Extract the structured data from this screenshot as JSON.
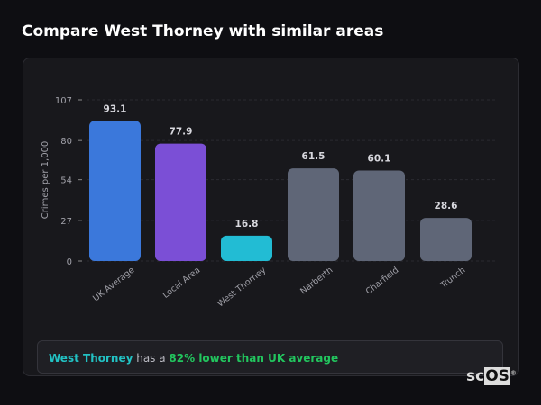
{
  "title": "Compare West Thorney with similar areas",
  "chart_data": {
    "type": "bar",
    "categories": [
      "UK Average",
      "Local Area",
      "West Thorney",
      "Narberth",
      "Charfield",
      "Trunch"
    ],
    "values": [
      93.1,
      77.9,
      16.8,
      61.5,
      60.1,
      28.6
    ],
    "colors": [
      "#3b78db",
      "#7b4fd6",
      "#22bcd4",
      "#5f6677",
      "#5f6677",
      "#5f6677"
    ],
    "ylabel": "Crimes per 1,000",
    "yticks": [
      0,
      27,
      54,
      80,
      107
    ],
    "ylim": [
      0,
      107
    ],
    "grid": true
  },
  "note": {
    "place": "West Thorney",
    "mid": " has a ",
    "stat": "82% lower than UK average"
  },
  "logo": {
    "pre": "sc",
    "box": "OS",
    "mark": "®"
  }
}
